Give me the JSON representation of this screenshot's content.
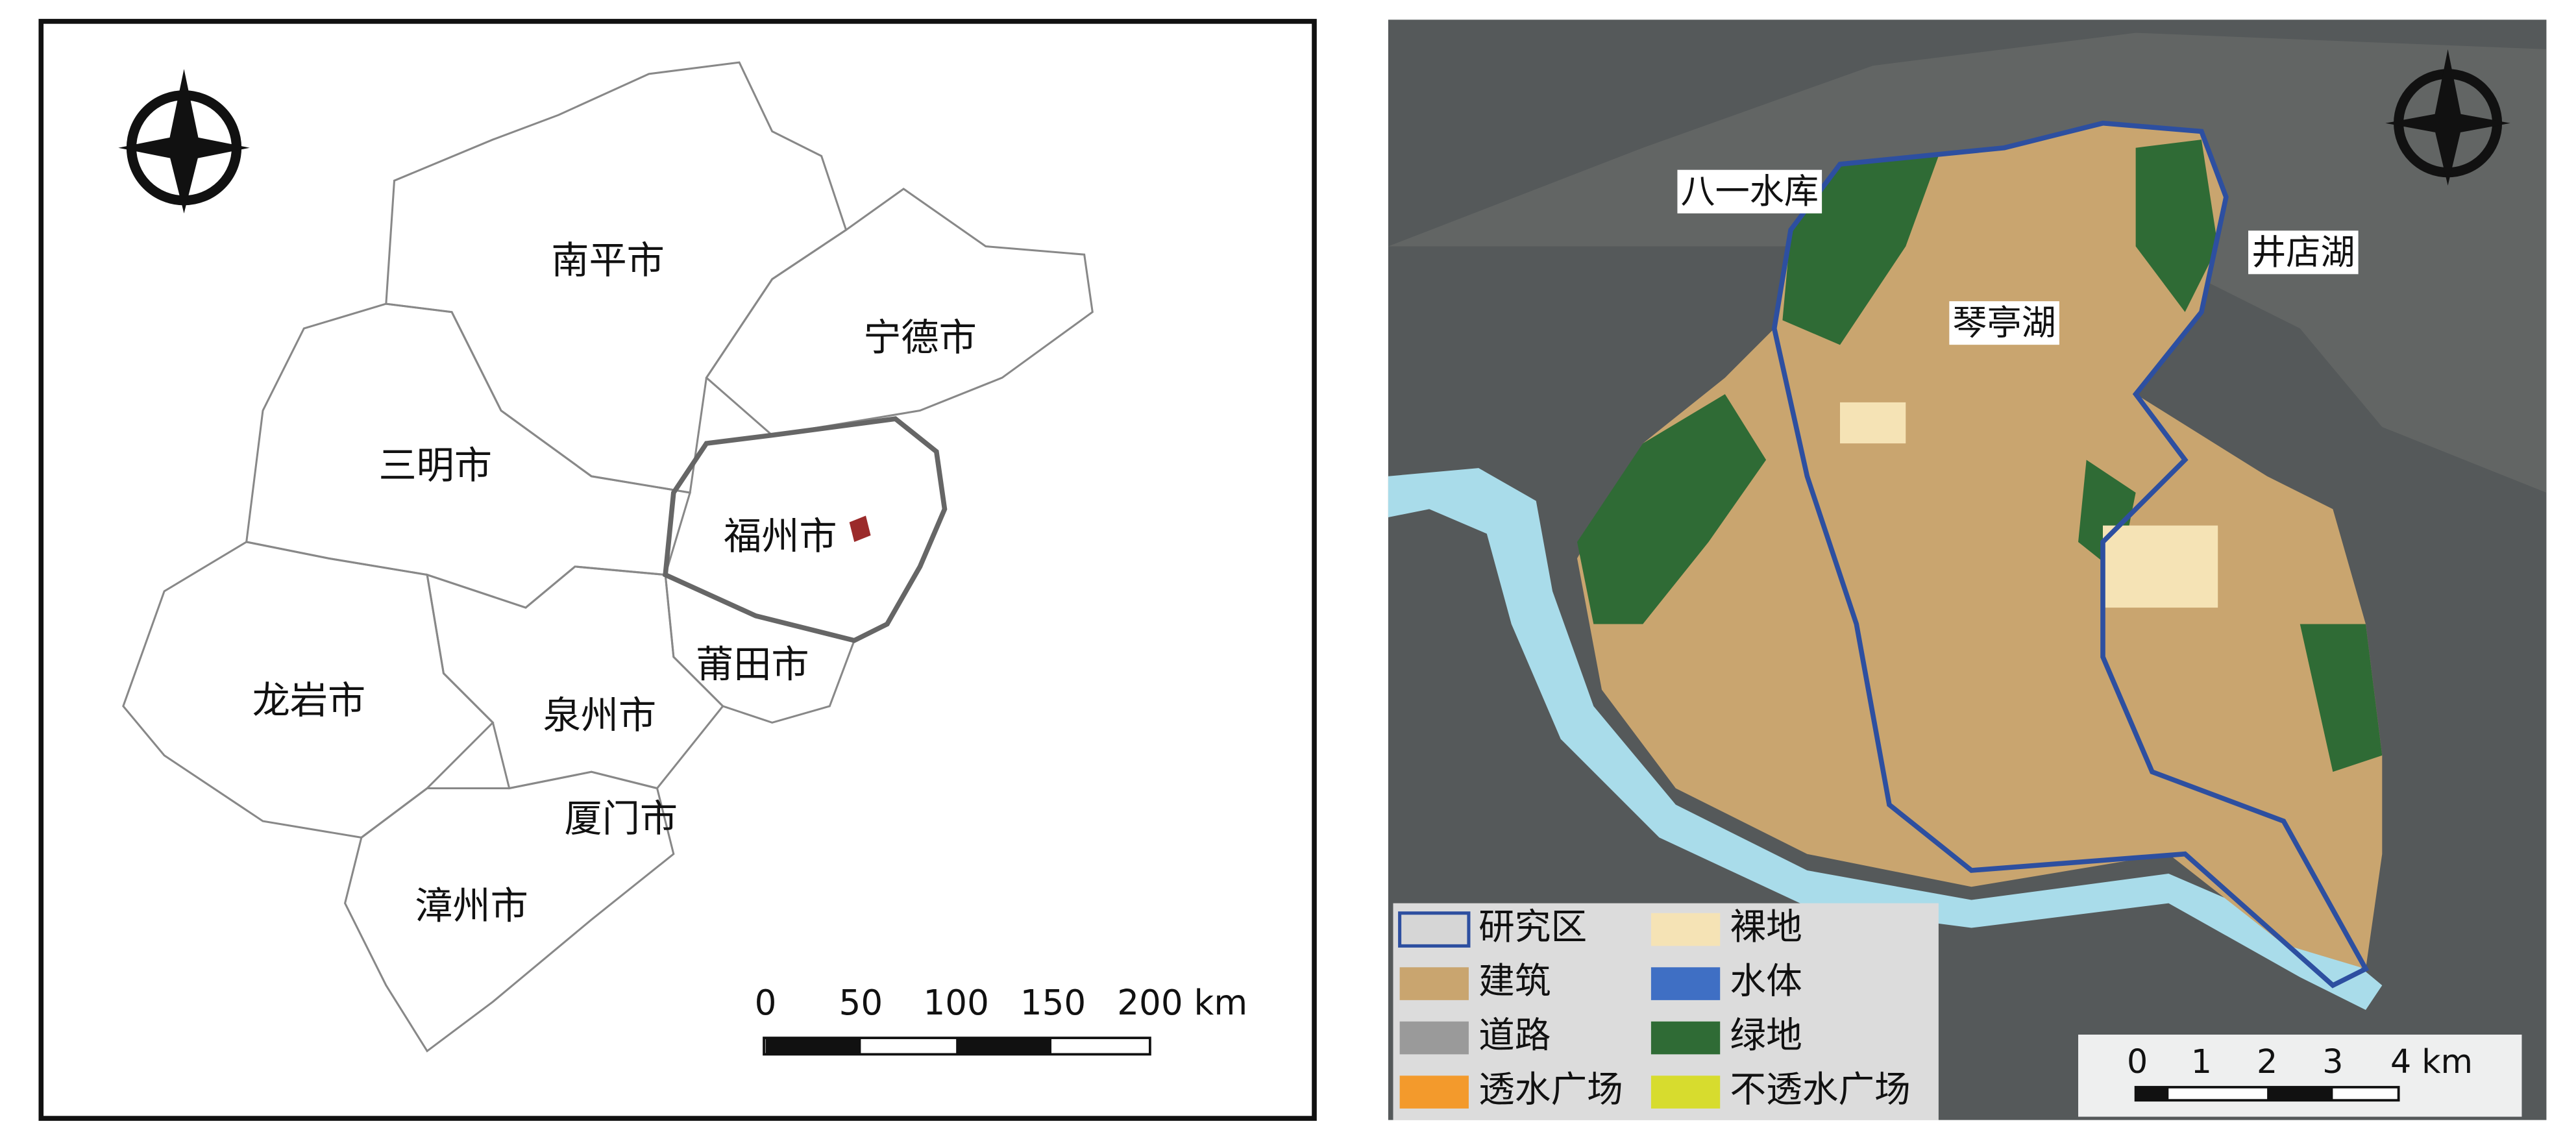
{
  "left_map": {
    "cities": [
      "南平市",
      "宁德市",
      "三明市",
      "福州市",
      "莆田市",
      "龙岩市",
      "泉州市",
      "厦门市",
      "漳州市"
    ],
    "scale_bar": [
      "0",
      "50",
      "100",
      "150",
      "200 km"
    ]
  },
  "right_map": {
    "lakes": [
      "八一水库",
      "琴亭湖",
      "井店湖"
    ],
    "legend": [
      {
        "label": "研究区",
        "color": "#d6d6d6"
      },
      {
        "label": "裸地",
        "color": "#f5e3b5"
      },
      {
        "label": "建筑",
        "color": "#c9a56f"
      },
      {
        "label": "水体",
        "color": "#3f6fc4"
      },
      {
        "label": "道路",
        "color": "#9a9a9a"
      },
      {
        "label": "绿地",
        "color": "#2f6b35"
      },
      {
        "label": "透水广场",
        "color": "#f39a2c"
      },
      {
        "label": "不透水广场",
        "color": "#d7dc2e"
      }
    ],
    "scale_bar": [
      "0",
      "1",
      "2",
      "3",
      "4 km"
    ]
  }
}
